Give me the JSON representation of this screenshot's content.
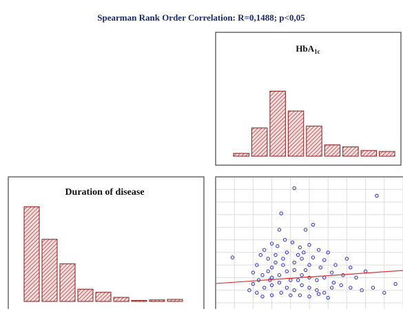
{
  "title": "Spearman Rank Order Correlation: R=0,1488; p<0,05",
  "chart_data": [
    {
      "type": "bar",
      "title": "HbA",
      "title_sub": "1c",
      "categories": [
        null,
        null,
        null,
        null,
        null,
        null,
        null,
        null,
        null
      ],
      "values": [
        3,
        30,
        69,
        48,
        32,
        12,
        10,
        6,
        5
      ],
      "color": "#8b1a1a",
      "ylim": [
        0,
        100
      ]
    },
    {
      "type": "bar",
      "title": "Duration of disease",
      "categories": [
        null,
        null,
        null,
        null,
        null,
        null,
        null,
        null,
        null
      ],
      "values": [
        93,
        61,
        37,
        12,
        9,
        4,
        1,
        1.5,
        2
      ],
      "color": "#8b1a1a",
      "ylim": [
        0,
        100
      ]
    },
    {
      "type": "scatter",
      "color": "#2a2ad0",
      "line_color": "#e03030",
      "grid": true,
      "xlim": [
        0,
        100
      ],
      "ylim": [
        0,
        100
      ],
      "xticks": [
        0,
        10,
        20,
        30,
        40,
        50,
        60,
        70,
        80,
        90,
        100
      ],
      "yticks": [
        0,
        10,
        20,
        30,
        40,
        50,
        60,
        70,
        80,
        90,
        100
      ],
      "x": [
        42,
        86,
        35,
        34,
        52,
        48,
        9,
        96,
        37,
        30,
        33,
        41,
        45,
        50,
        55,
        60,
        26,
        24,
        28,
        32,
        38,
        44,
        46,
        52,
        58,
        64,
        70,
        72,
        80,
        75,
        68,
        62,
        56,
        50,
        42,
        36,
        30,
        22,
        20,
        25,
        30,
        34,
        38,
        42,
        46,
        50,
        54,
        58,
        63,
        67,
        72,
        78,
        84,
        90,
        20,
        18,
        22,
        26,
        30,
        34,
        38,
        42,
        46,
        50,
        54,
        58,
        62,
        25,
        30,
        35,
        40,
        45,
        50,
        55,
        60,
        28,
        32,
        40,
        44,
        48,
        36,
        29,
        23,
        47
      ],
      "values": [
        91,
        85,
        71,
        58,
        62,
        58,
        36,
        15,
        50,
        47,
        45,
        48,
        44,
        46,
        42,
        40,
        42,
        38,
        35,
        38,
        40,
        38,
        35,
        36,
        34,
        30,
        35,
        28,
        25,
        20,
        22,
        24,
        28,
        30,
        32,
        30,
        28,
        30,
        24,
        22,
        20,
        22,
        25,
        26,
        22,
        20,
        18,
        20,
        16,
        14,
        12,
        10,
        12,
        8,
        15,
        10,
        8,
        12,
        14,
        16,
        12,
        10,
        14,
        12,
        10,
        8,
        12,
        5,
        6,
        8,
        6,
        6,
        5,
        7,
        4,
        25,
        32,
        18,
        18,
        26,
        35,
        18,
        18,
        40
      ],
      "fit": {
        "x": [
          0,
          100
        ],
        "values": [
          15.3,
          25.7
        ]
      }
    }
  ]
}
